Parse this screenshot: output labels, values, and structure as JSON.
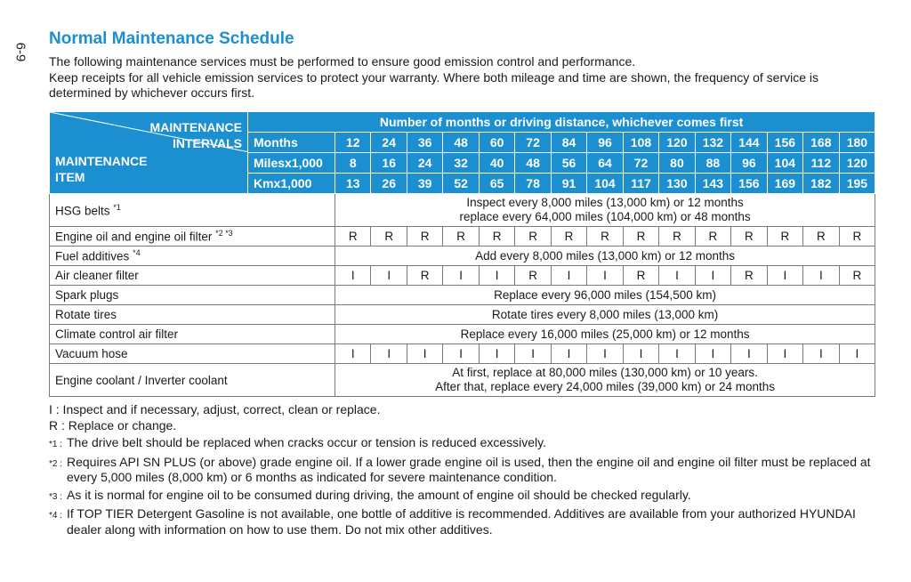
{
  "page": {
    "side_number": "6-9"
  },
  "title": "Normal Maintenance Schedule",
  "intro": {
    "line1": "The following maintenance services must be performed to ensure good emission control and performance.",
    "line2": "Keep receipts for all vehicle emission services to protect your warranty. Where both mileage and time are shown, the frequency of service is determined by whichever occurs first."
  },
  "table": {
    "corner_top": [
      "MAINTENANCE",
      "INTERVALS"
    ],
    "corner_bottom": [
      "MAINTENANCE",
      "ITEM"
    ],
    "header_title": "Number of months or driving distance, whichever comes first",
    "rows_header": [
      {
        "unit": "Months",
        "values": [
          "12",
          "24",
          "36",
          "48",
          "60",
          "72",
          "84",
          "96",
          "108",
          "120",
          "132",
          "144",
          "156",
          "168",
          "180"
        ]
      },
      {
        "unit": "Milesx1,000",
        "values": [
          "8",
          "16",
          "24",
          "32",
          "40",
          "48",
          "56",
          "64",
          "72",
          "80",
          "88",
          "96",
          "104",
          "112",
          "120"
        ]
      },
      {
        "unit": "Kmx1,000",
        "values": [
          "13",
          "26",
          "39",
          "52",
          "65",
          "78",
          "91",
          "104",
          "117",
          "130",
          "143",
          "156",
          "169",
          "182",
          "195"
        ]
      }
    ],
    "items": [
      {
        "name": "HSG belts",
        "sup": "*1",
        "span": [
          "Inspect every 8,000 miles (13,000 km) or 12 months",
          "replace every 64,000 miles (104,000 km) or 48 months"
        ]
      },
      {
        "name": "Engine oil and engine oil filter",
        "sup": "*2 *3",
        "cells": [
          "R",
          "R",
          "R",
          "R",
          "R",
          "R",
          "R",
          "R",
          "R",
          "R",
          "R",
          "R",
          "R",
          "R",
          "R"
        ]
      },
      {
        "name": "Fuel additives",
        "sup": "*4",
        "span": [
          "Add every 8,000 miles (13,000 km) or 12 months"
        ]
      },
      {
        "name": "Air cleaner filter",
        "sup": "",
        "cells": [
          "I",
          "I",
          "R",
          "I",
          "I",
          "R",
          "I",
          "I",
          "R",
          "I",
          "I",
          "R",
          "I",
          "I",
          "R"
        ]
      },
      {
        "name": "Spark plugs",
        "sup": "",
        "span": [
          "Replace every 96,000 miles (154,500 km)"
        ]
      },
      {
        "name": "Rotate tires",
        "sup": "",
        "span": [
          "Rotate tires every 8,000 miles (13,000 km)"
        ]
      },
      {
        "name": "Climate control air filter",
        "sup": "",
        "span": [
          "Replace every 16,000 miles (25,000 km) or 12 months"
        ]
      },
      {
        "name": "Vacuum hose",
        "sup": "",
        "cells": [
          "I",
          "I",
          "I",
          "I",
          "I",
          "I",
          "I",
          "I",
          "I",
          "I",
          "I",
          "I",
          "I",
          "I",
          "I"
        ]
      },
      {
        "name": "Engine coolant / Inverter coolant",
        "sup": "",
        "span": [
          "At first, replace at 80,000 miles (130,000 km) or 10 years.",
          "After that, replace every 24,000 miles (39,000 km) or 24 months"
        ]
      }
    ]
  },
  "notes": {
    "legend_i": "I : Inspect and if necessary, adjust, correct, clean or replace.",
    "legend_r": "R : Replace or change.",
    "footnotes": [
      {
        "mark": "*1 :",
        "text": "The drive belt should be replaced when cracks occur or tension is reduced excessively."
      },
      {
        "mark": "*2 :",
        "text": "Requires API SN PLUS (or above) grade engine oil. If a lower grade engine oil is used, then the engine oil and engine oil filter must be replaced at every 5,000 miles (8,000 km) or 6 months as indicated for severe maintenance condition."
      },
      {
        "mark": "*3 :",
        "text": "As it is normal for engine oil to be consumed during driving, the amount of engine oil should be checked regularly."
      },
      {
        "mark": "*4 :",
        "text": "If TOP TIER Detergent Gasoline is not available, one bottle of additive is recommended. Additives are available from your authorized HYUNDAI dealer along with information on how to use them. Do not mix other additives."
      }
    ]
  },
  "colors": {
    "accent": "#1b8fd0",
    "border": "#7a7a7a",
    "text": "#1a1a1a"
  }
}
